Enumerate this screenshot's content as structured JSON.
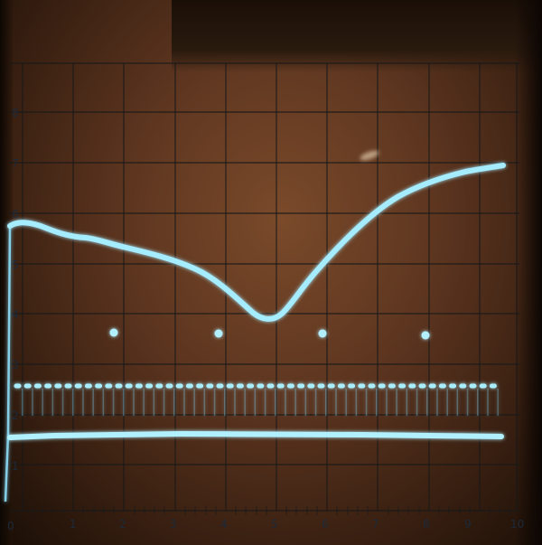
{
  "screen": {
    "phosphor_color": "#9fe8ff",
    "background_color": "#6a3f24"
  },
  "scale": {
    "x_labels": [
      "0",
      "1",
      "2",
      "3",
      "4",
      "5",
      "6",
      "7",
      "8",
      "9",
      "10"
    ],
    "y_labels": [
      "1",
      "2",
      "3",
      "4",
      "5",
      "6",
      "7",
      "8"
    ]
  }
}
